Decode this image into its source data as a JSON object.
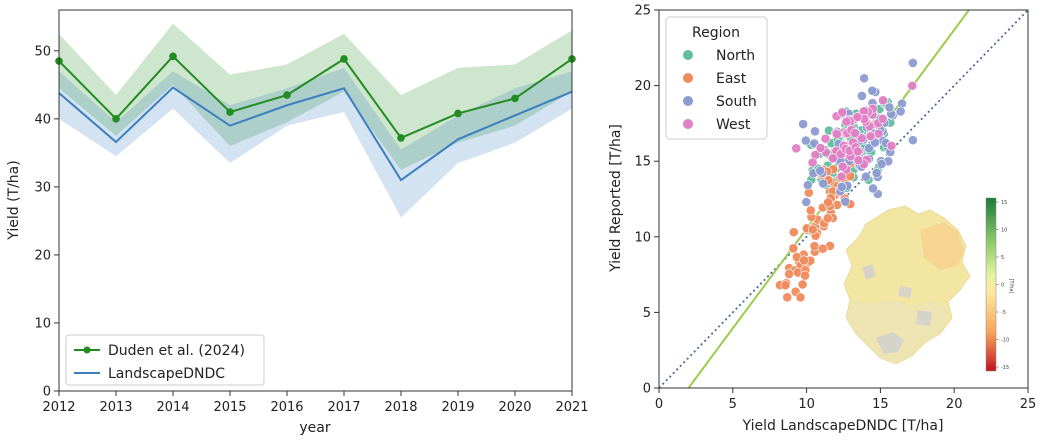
{
  "chart_data": [
    {
      "type": "line",
      "xlabel": "year",
      "ylabel": "Yield (T/ha)",
      "xlim": [
        2012,
        2021
      ],
      "ylim": [
        0,
        56
      ],
      "grid": false,
      "legend": "lower-left",
      "x": [
        2012,
        2013,
        2014,
        2015,
        2016,
        2017,
        2018,
        2019,
        2020,
        2021
      ],
      "x_ticks": [
        "2012",
        "2013",
        "2014",
        "2015",
        "2016",
        "2017",
        "2018",
        "2019",
        "2020",
        "2021"
      ],
      "y_ticks": [
        "0",
        "10",
        "20",
        "30",
        "40",
        "50"
      ],
      "series": [
        {
          "name": "Duden et al. (2024)",
          "color": "#228b22",
          "values": [
            48.5,
            40.0,
            49.2,
            41.0,
            43.5,
            48.8,
            37.2,
            40.8,
            43.0,
            48.8
          ],
          "lower": [
            44.5,
            37.5,
            45.0,
            36.0,
            39.5,
            44.0,
            32.5,
            36.5,
            39.0,
            44.0
          ],
          "upper": [
            52.5,
            43.5,
            54.0,
            46.5,
            48.0,
            52.5,
            43.5,
            47.5,
            48.0,
            53.0
          ]
        },
        {
          "name": "LandscapeDNDC",
          "color": "#3b7fbf",
          "values": [
            43.8,
            36.6,
            44.6,
            39.0,
            42.0,
            44.5,
            31.0,
            37.0,
            40.5,
            44.0
          ],
          "lower": [
            40.0,
            34.5,
            41.5,
            33.5,
            39.0,
            41.0,
            25.5,
            33.5,
            36.5,
            41.5
          ],
          "upper": [
            47.0,
            39.5,
            47.0,
            42.0,
            44.5,
            47.5,
            35.5,
            40.5,
            44.5,
            47.0
          ]
        }
      ]
    },
    {
      "type": "scatter",
      "xlabel": "Yield LandscapeDNDC [T/ha]",
      "ylabel": "Yield Reported [T/ha]",
      "xlim": [
        0,
        25
      ],
      "ylim": [
        0,
        25
      ],
      "x_ticks": [
        "0",
        "5",
        "10",
        "15",
        "20",
        "25"
      ],
      "y_ticks": [
        "0",
        "5",
        "10",
        "15",
        "20",
        "25"
      ],
      "grid": false,
      "legend": "top-left",
      "legend_title": "Region",
      "series": [
        {
          "name": "North",
          "color": "#5fbf9f",
          "center": [
            13.2,
            15.9
          ],
          "spread": [
            1.4,
            1.3
          ],
          "count": 70
        },
        {
          "name": "East",
          "color": "#f08a5d",
          "center": [
            10.2,
            9.6
          ],
          "spread": [
            1.1,
            2.1
          ],
          "count": 75
        },
        {
          "name": "South",
          "color": "#8c9bd0",
          "center": [
            13.6,
            16.1
          ],
          "spread": [
            1.5,
            1.6
          ],
          "count": 75
        },
        {
          "name": "West",
          "color": "#e07fc4",
          "center": [
            13.3,
            16.6
          ],
          "spread": [
            1.2,
            1.0
          ],
          "count": 60
        }
      ],
      "reference_lines": [
        {
          "kind": "identity",
          "color": "#4a6a9a",
          "style": "dotted",
          "points": [
            [
              0,
              0
            ],
            [
              25,
              25
            ]
          ]
        },
        {
          "kind": "fit",
          "color": "#9acd4b",
          "style": "solid",
          "points": [
            [
              2.0,
              0
            ],
            [
              21.0,
              25
            ]
          ]
        }
      ],
      "inset": {
        "kind": "choropleth-map",
        "colorbar": {
          "ticks": [
            "15",
            "10",
            "5",
            "0",
            "-5",
            "-10",
            "-15"
          ],
          "unit": "[T/ha]",
          "colors": [
            "#1a7a3a",
            "#8cc96b",
            "#e8f3a0",
            "#fde8a0",
            "#f7a35a",
            "#c0141e"
          ]
        }
      }
    }
  ]
}
